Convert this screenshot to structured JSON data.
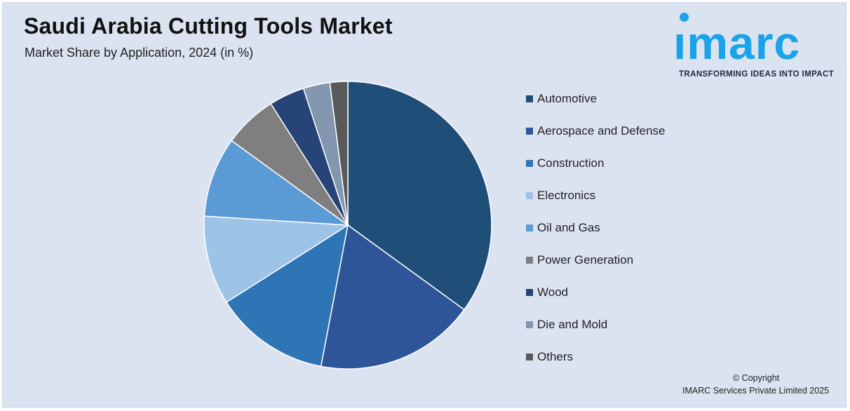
{
  "header": {
    "title": "Saudi Arabia Cutting Tools Market",
    "subtitle": "Market Share by Application, 2024 (in %)"
  },
  "logo": {
    "word": "ımarc",
    "tagline": "TRANSFORMING IDEAS INTO IMPACT",
    "color": "#1aa3e8"
  },
  "footer": {
    "copyright": "© Copyright",
    "company": "IMARC Services Private Limited 2025"
  },
  "chart_data": {
    "type": "pie",
    "title": "Saudi Arabia Cutting Tools Market",
    "subtitle": "Market Share by Application, 2024 (in %)",
    "legend_position": "right",
    "start_angle": "12 o'clock, clockwise",
    "categories": [
      "Automotive",
      "Aerospace and Defense",
      "Construction",
      "Electronics",
      "Oil and Gas",
      "Power Generation",
      "Wood",
      "Die and Mold",
      "Others"
    ],
    "values": [
      35,
      18,
      13,
      10,
      9,
      6,
      4,
      3,
      2
    ],
    "colors": [
      "#1f4e79",
      "#2e5597",
      "#2e75b6",
      "#9dc3e6",
      "#5b9bd5",
      "#7f7f7f",
      "#264478",
      "#8497b0",
      "#595959"
    ]
  }
}
